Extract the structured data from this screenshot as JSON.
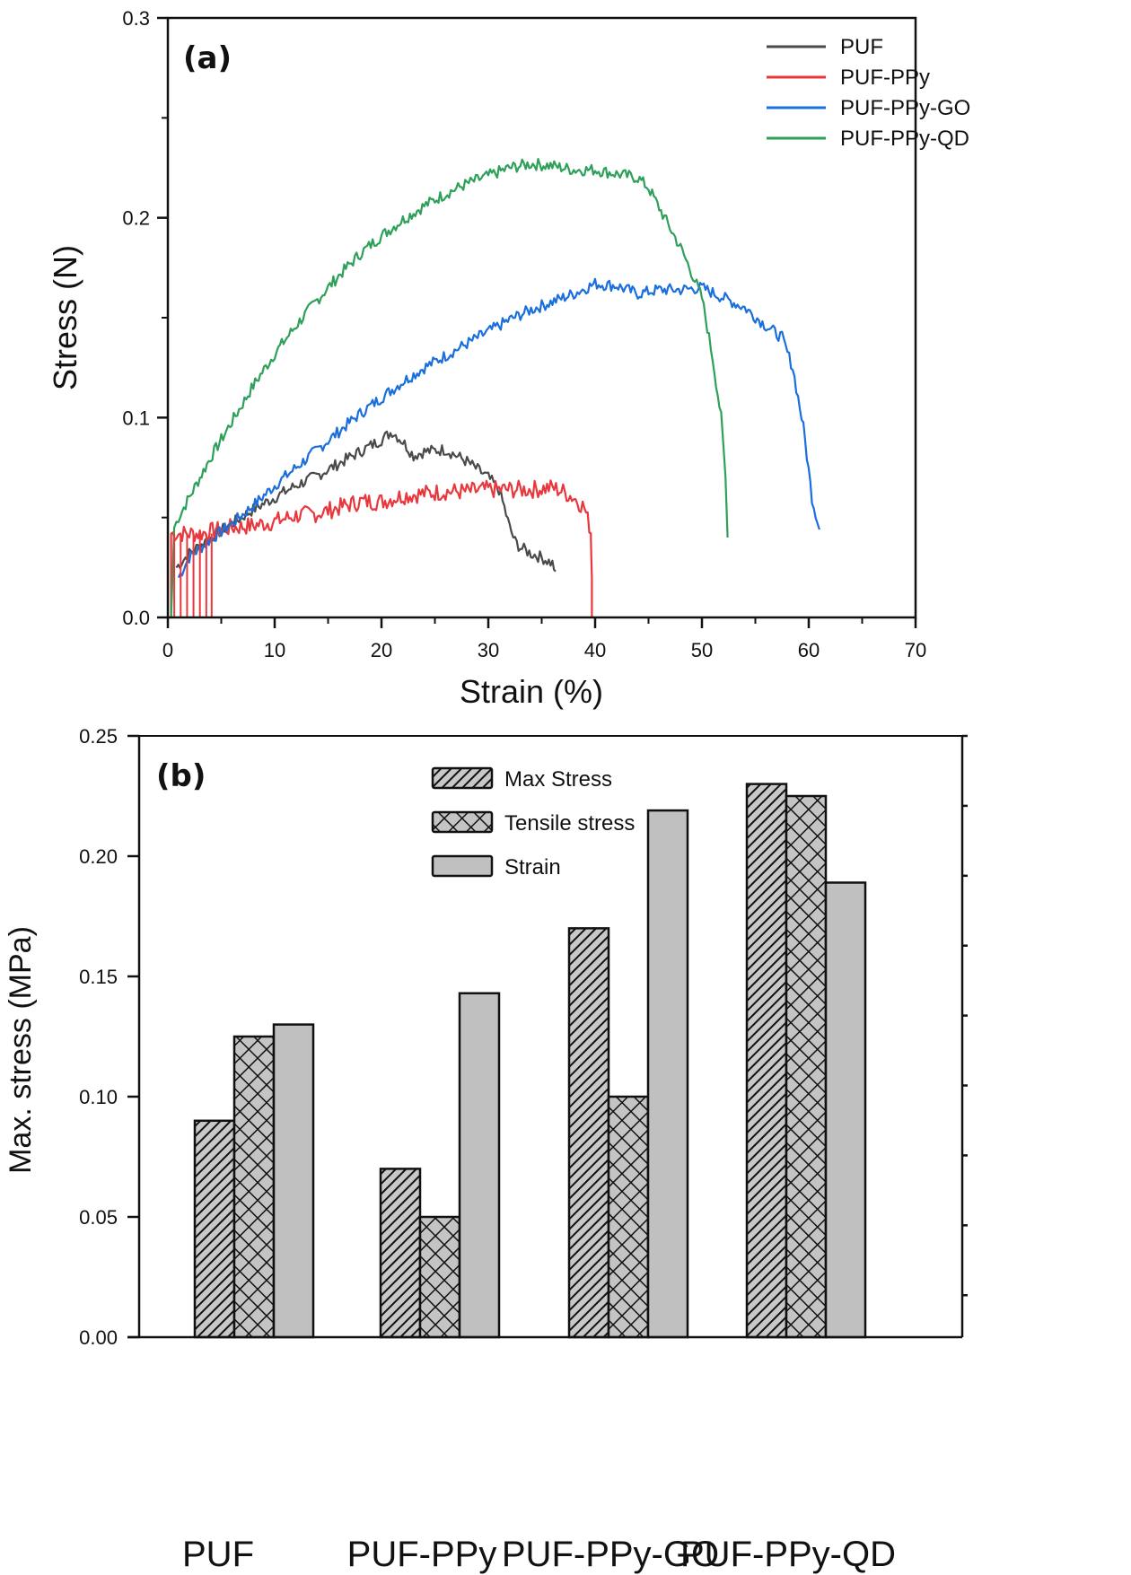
{
  "chart_data": [
    {
      "panel": "(a)",
      "type": "line",
      "xlabel": "Strain (%)",
      "ylabel": "Stress (N)",
      "xlim": [
        0,
        70
      ],
      "ylim": [
        0,
        0.3
      ],
      "xticks": [
        0,
        10,
        20,
        30,
        40,
        50,
        60,
        70
      ],
      "xtick_labels": [
        "0",
        "10",
        "20",
        "30",
        "40",
        "50",
        "60",
        "70"
      ],
      "yticks": [
        0.0,
        0.1,
        0.2,
        0.3
      ],
      "ytick_labels": [
        "0.0",
        "0.1",
        "0.2",
        "0.3"
      ],
      "grid": false,
      "legend_position": "top-right",
      "series": [
        {
          "name": "PUF",
          "color": "#4a4a4a",
          "x": [
            0.8,
            2,
            4,
            6,
            8,
            10,
            12,
            14,
            16,
            18,
            20,
            21,
            22,
            23,
            24,
            26,
            28,
            30,
            31,
            31.5,
            32,
            32.5,
            33,
            34,
            35,
            36,
            36.3
          ],
          "y": [
            0.025,
            0.032,
            0.04,
            0.047,
            0.054,
            0.06,
            0.066,
            0.071,
            0.077,
            0.083,
            0.089,
            0.093,
            0.088,
            0.081,
            0.083,
            0.084,
            0.078,
            0.07,
            0.064,
            0.055,
            0.045,
            0.038,
            0.035,
            0.032,
            0.03,
            0.027,
            0.023
          ]
        },
        {
          "name": "PUF-PPy",
          "color": "#e8383d",
          "x": [
            0.3,
            0.3,
            1,
            3,
            4,
            6,
            8,
            10,
            12,
            14,
            16,
            18,
            20,
            22,
            24,
            26,
            28,
            30,
            32,
            34,
            36,
            37,
            38,
            39,
            39.6,
            39.7,
            39.7
          ],
          "y": [
            0,
            0.042,
            0.042,
            0.042,
            0.043,
            0.045,
            0.046,
            0.048,
            0.051,
            0.052,
            0.055,
            0.058,
            0.058,
            0.061,
            0.062,
            0.063,
            0.063,
            0.064,
            0.064,
            0.064,
            0.065,
            0.063,
            0.06,
            0.055,
            0.043,
            0.02,
            0
          ]
        },
        {
          "name": "PUF-PPy-GO",
          "color": "#1a6fdc",
          "x": [
            1,
            2,
            4,
            6,
            8,
            10,
            12,
            14,
            16,
            18,
            20,
            22,
            24,
            26,
            28,
            30,
            32,
            34,
            36,
            38,
            40,
            42,
            44,
            46,
            48,
            50,
            52,
            54,
            56,
            57.5,
            58.5,
            59.5,
            60.3,
            61
          ],
          "y": [
            0.02,
            0.03,
            0.039,
            0.047,
            0.056,
            0.066,
            0.075,
            0.084,
            0.093,
            0.102,
            0.11,
            0.118,
            0.125,
            0.131,
            0.137,
            0.143,
            0.149,
            0.154,
            0.158,
            0.162,
            0.167,
            0.166,
            0.162,
            0.164,
            0.164,
            0.165,
            0.16,
            0.155,
            0.146,
            0.14,
            0.125,
            0.095,
            0.06,
            0.044
          ]
        },
        {
          "name": "PUF-PPy-QD",
          "color": "#2ea05a",
          "x": [
            0.3,
            0.6,
            1,
            2,
            3,
            4,
            6,
            8,
            10,
            12,
            14,
            16,
            18,
            20,
            22,
            24,
            26,
            28,
            30,
            32,
            34,
            36,
            38,
            40,
            42,
            44,
            45,
            46,
            47,
            48,
            49,
            50,
            51,
            51.8,
            52.2,
            52.4
          ],
          "y": [
            0,
            0.045,
            0.05,
            0.06,
            0.07,
            0.08,
            0.098,
            0.116,
            0.132,
            0.146,
            0.159,
            0.171,
            0.182,
            0.191,
            0.199,
            0.206,
            0.212,
            0.217,
            0.221,
            0.225,
            0.227,
            0.226,
            0.224,
            0.224,
            0.222,
            0.22,
            0.215,
            0.205,
            0.195,
            0.185,
            0.173,
            0.16,
            0.13,
            0.1,
            0.07,
            0.04
          ]
        }
      ]
    },
    {
      "panel": "(b)",
      "type": "bar",
      "xlabel": "",
      "ylabel": "Max. stress (MPa)",
      "ylim": [
        0,
        0.25
      ],
      "yticks": [
        0.0,
        0.05,
        0.1,
        0.15,
        0.2,
        0.25
      ],
      "ytick_labels": [
        "0.00",
        "0.05",
        "0.10",
        "0.15",
        "0.20",
        "0.25"
      ],
      "grid": false,
      "legend_position": "top-center",
      "categories": [
        "PUF",
        "PUF-PPy",
        "PUF-PPy-GO",
        "PUF-PPy-QD"
      ],
      "series": [
        {
          "name": "Max Stress",
          "pattern": "diagonal-hatch",
          "values": [
            0.09,
            0.07,
            0.17,
            0.23
          ]
        },
        {
          "name": "Tensile stress",
          "pattern": "cross-hatch",
          "values": [
            0.125,
            0.05,
            0.1,
            0.225
          ]
        },
        {
          "name": "Strain",
          "pattern": "solid-gray",
          "values": [
            0.13,
            0.143,
            0.219,
            0.189
          ]
        }
      ]
    }
  ]
}
